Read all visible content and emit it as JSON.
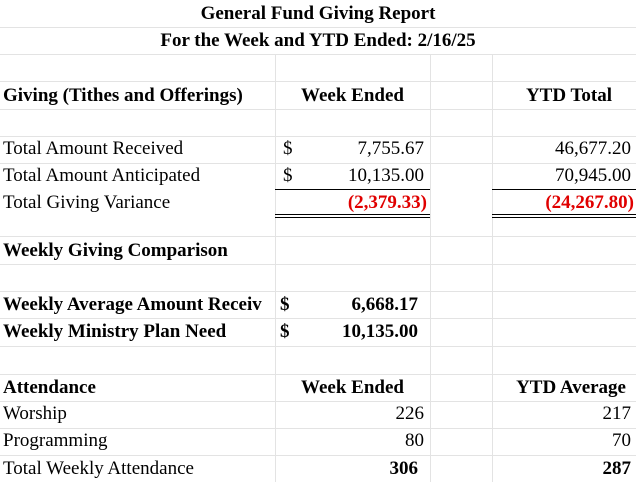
{
  "header": {
    "title": "General Fund Giving Report",
    "subtitle": "For the Week and YTD Ended:  2/16/25"
  },
  "giving": {
    "heading": "Giving (Tithes and Offerings)",
    "col_week": "Week Ended",
    "col_ytd": "YTD Total",
    "rows": [
      {
        "label": "Total Amount Received",
        "currency": "$",
        "week": "7,755.67",
        "ytd": "46,677.20"
      },
      {
        "label": "Total Amount Anticipated",
        "currency": "$",
        "week": "10,135.00",
        "ytd": "70,945.00"
      },
      {
        "label": "Total Giving Variance",
        "week": "(2,379.33)",
        "ytd": "(24,267.80)"
      }
    ]
  },
  "comparison": {
    "heading": "Weekly Giving Comparison",
    "rows": [
      {
        "label": "Weekly Average Amount Receiv",
        "currency": "$",
        "value": "6,668.17"
      },
      {
        "label": "Weekly Ministry Plan Need",
        "currency": "$",
        "value": "10,135.00"
      }
    ]
  },
  "attendance": {
    "heading": "Attendance",
    "col_week": "Week Ended",
    "col_ytd": "YTD Average",
    "rows": [
      {
        "label": "Worship",
        "week": "226",
        "ytd": "217"
      },
      {
        "label": "Programming",
        "week": "80",
        "ytd": "70"
      },
      {
        "label": "Total Weekly Attendance",
        "week": "306",
        "ytd": "287"
      }
    ]
  }
}
